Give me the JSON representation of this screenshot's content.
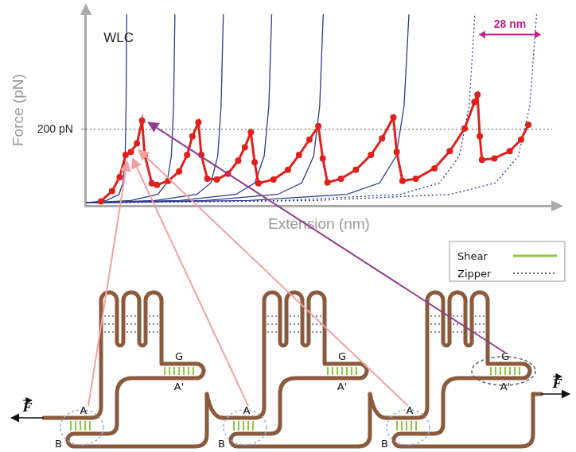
{
  "chart_data": {
    "type": "line",
    "x_label": "Extension (nm)",
    "y_label": "Force (pN)",
    "xlim": [
      0,
      210
    ],
    "ylim": [
      0,
      500
    ],
    "xticks": [],
    "yticks": [
      {
        "value": 200,
        "label": "200 pN"
      }
    ],
    "grid": true,
    "tick_labels": "y",
    "series": [
      {
        "color": "#e0201c",
        "marker": "circle",
        "line_style": "solid",
        "x": [
          6.8,
          11.8,
          15.2,
          17.9,
          20.3,
          23,
          25.3,
          26.5,
          29.7,
          32,
          37,
          42,
          45.6,
          48,
          50.7,
          52,
          54.7,
          59,
          64,
          68.6,
          71.6,
          74.3,
          76,
          77.7,
          84.5,
          91,
          96,
          100.7,
          104.7,
          106.7,
          108.8,
          114.9,
          121.6,
          128.4,
          133.4,
          138.5,
          140,
          142.6,
          148.6,
          157,
          163.9,
          170.6,
          175,
          176.4,
          177.4,
          178.4,
          184,
          190.9,
          196,
          199.3
        ],
        "values": [
          12,
          39,
          75,
          133,
          141,
          163,
          222,
          133,
          59,
          55,
          65,
          90,
          133,
          182,
          218,
          133,
          71,
          69,
          84,
          118,
          153,
          192,
          114,
          59,
          69,
          94,
          133,
          173,
          208,
          124,
          61,
          71,
          94,
          133,
          176,
          231,
          141,
          65,
          71,
          98,
          143,
          202,
          271,
          290,
          182,
          120,
          124,
          143,
          173,
          212
        ]
      },
      {
        "color": "#2b3a8c",
        "marker": "none",
        "line_style": "solid",
        "x": [
          0,
          9.3,
          14.9,
          16.7,
          17.7,
          18.1,
          18.4
        ],
        "values": [
          8,
          14,
          30,
          60,
          130,
          260,
          500
        ]
      },
      {
        "color": "#2b3a8c",
        "marker": "none",
        "line_style": "solid",
        "x": [
          0,
          20.3,
          32.4,
          36.5,
          38.5,
          39.5,
          40.1
        ],
        "values": [
          8,
          14,
          30,
          60,
          130,
          260,
          500
        ]
      },
      {
        "color": "#2b3a8c",
        "marker": "none",
        "line_style": "solid",
        "x": [
          0,
          31.3,
          50,
          56.3,
          59.4,
          60.9,
          61.9
        ],
        "values": [
          8,
          14,
          30,
          60,
          130,
          260,
          500
        ]
      },
      {
        "color": "#2b3a8c",
        "marker": "none",
        "line_style": "solid",
        "x": [
          0,
          42.3,
          67.6,
          76.1,
          80.3,
          82.4,
          83.7
        ],
        "values": [
          8,
          14,
          30,
          60,
          130,
          260,
          500
        ]
      },
      {
        "color": "#2b3a8c",
        "marker": "none",
        "line_style": "solid",
        "x": [
          0,
          54,
          86.4,
          97.2,
          102.6,
          105.3,
          106.9
        ],
        "values": [
          8,
          14,
          30,
          60,
          130,
          260,
          500
        ]
      },
      {
        "color": "#2b3a8c",
        "marker": "none",
        "line_style": "solid",
        "x": [
          0,
          73.5,
          117.6,
          132.3,
          139.7,
          143.3,
          145.5
        ],
        "values": [
          8,
          14,
          30,
          60,
          130,
          260,
          500
        ]
      },
      {
        "color": "#2b3a8c",
        "marker": "none",
        "line_style": "dotted",
        "x": [
          0,
          88.5,
          141.6,
          159.3,
          168.2,
          172.6,
          175.2
        ],
        "values": [
          8,
          14,
          30,
          60,
          130,
          260,
          500
        ]
      },
      {
        "color": "#2b3a8c",
        "marker": "none",
        "line_style": "dotted",
        "x": [
          0,
          102.5,
          164,
          184.5,
          194.8,
          199.9,
          203
        ],
        "values": [
          8,
          14,
          30,
          60,
          130,
          260,
          500
        ]
      }
    ],
    "annotations": [
      {
        "text": "WLC",
        "x": 8,
        "y": 437,
        "color": "#222222"
      },
      {
        "text": "28 nm",
        "x": [
          177,
          205
        ],
        "y": 447,
        "color": "#c0208c"
      }
    ]
  },
  "diagram": {
    "modules": [
      {
        "labels": [
          "A",
          "B",
          "G",
          "A'"
        ]
      },
      {
        "labels": [
          "A",
          "B",
          "G",
          "A'"
        ]
      },
      {
        "labels": [
          "A",
          "B",
          "G",
          "A'"
        ]
      }
    ],
    "force_label": "F",
    "legend": [
      {
        "label": "Shear",
        "color": "#8dc63f",
        "line_style": "solid"
      },
      {
        "label": "Zipper",
        "color": "#666666",
        "line_style": "dotted"
      }
    ]
  }
}
